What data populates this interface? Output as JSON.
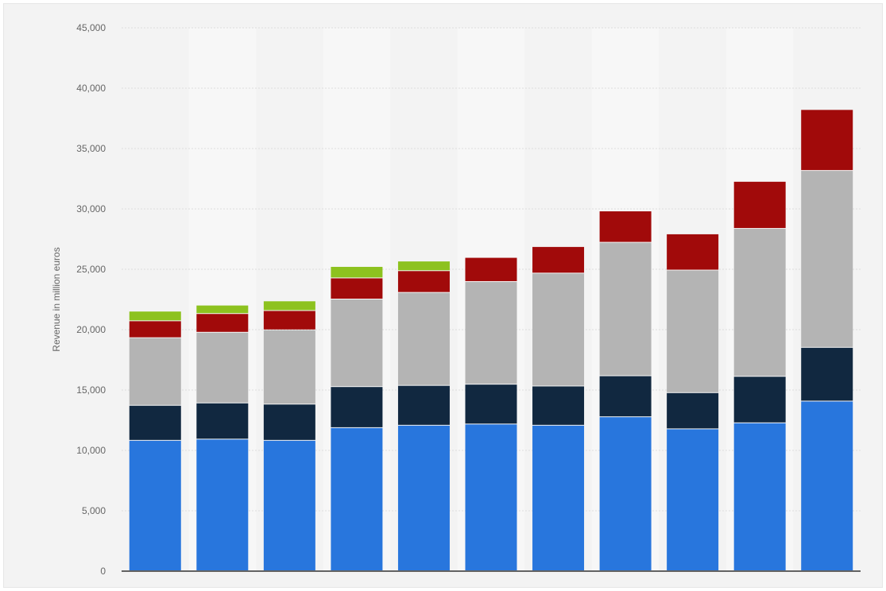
{
  "chart_data": {
    "type": "bar",
    "stacked": true,
    "ylabel": "Revenue in million euros",
    "ylim": [
      0,
      45000
    ],
    "yticks": [
      0,
      5000,
      10000,
      15000,
      20000,
      25000,
      30000,
      35000,
      40000,
      45000
    ],
    "ytick_labels": [
      "0",
      "5,000",
      "10,000",
      "15,000",
      "20,000",
      "25,000",
      "30,000",
      "35,000",
      "40,000",
      "45,000"
    ],
    "grid": true,
    "legend": "none",
    "bar_count": 11,
    "series": [
      {
        "color": "#2876dd",
        "values": [
          10800,
          10900,
          10800,
          11850,
          12050,
          12150,
          12050,
          12750,
          11750,
          12250,
          14050
        ]
      },
      {
        "color": "#112840",
        "values": [
          2900,
          3000,
          3000,
          3400,
          3300,
          3300,
          3250,
          3400,
          3000,
          3850,
          4450
        ]
      },
      {
        "color": "#b4b4b4",
        "values": [
          5600,
          5850,
          6150,
          7250,
          7700,
          8500,
          9350,
          11050,
          10150,
          12250,
          14650
        ]
      },
      {
        "color": "#a10a0a",
        "values": [
          1400,
          1550,
          1600,
          1750,
          1800,
          2000,
          2200,
          2600,
          3000,
          3900,
          5050
        ]
      },
      {
        "color": "#8dc21f",
        "values": [
          800,
          700,
          800,
          950,
          800,
          0,
          0,
          0,
          0,
          0,
          0
        ]
      }
    ]
  }
}
